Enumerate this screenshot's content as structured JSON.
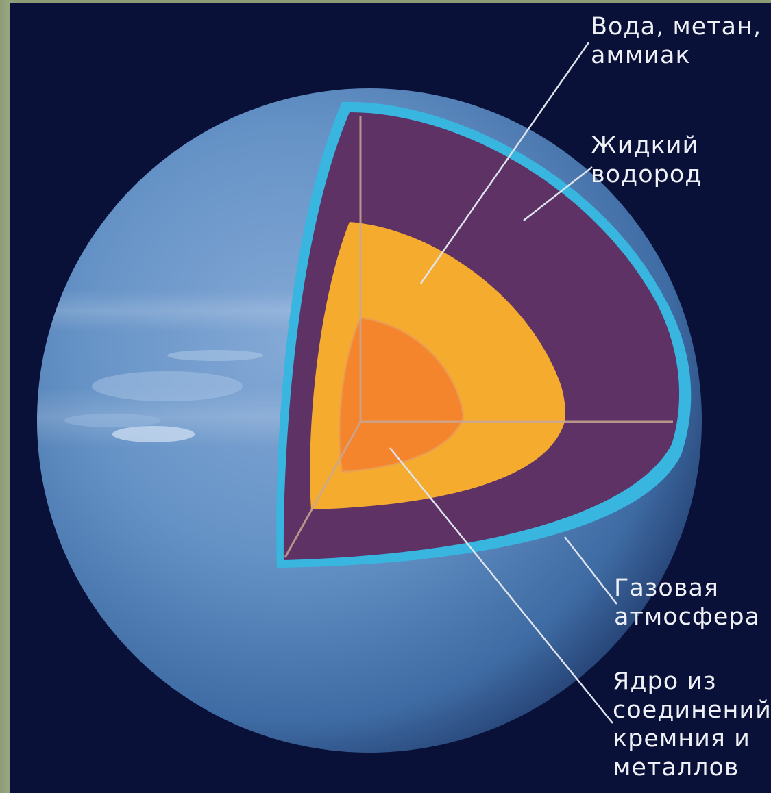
{
  "labels": {
    "water_methane_ammonia": "Вода, метан,\nаммиак",
    "liquid_hydrogen": "Жидкий\nводород",
    "gas_atmosphere": "Газовая\nатмосфера",
    "core": "Ядро из\nсоединений\nкремния и\nметаллов"
  },
  "colors": {
    "background": "#0a1138",
    "frame": "#8d9c76",
    "planet_surface": "#5a8ac0",
    "atmosphere_layer": "#38b6e0",
    "liquid_hydrogen_layer": "#5e3264",
    "mantle_layer": "#f5ac2e",
    "core_layer": "#f5852c",
    "leader_lines": "#dfe4ee"
  },
  "icons": [
    "neptune-cutaway-illustration"
  ]
}
